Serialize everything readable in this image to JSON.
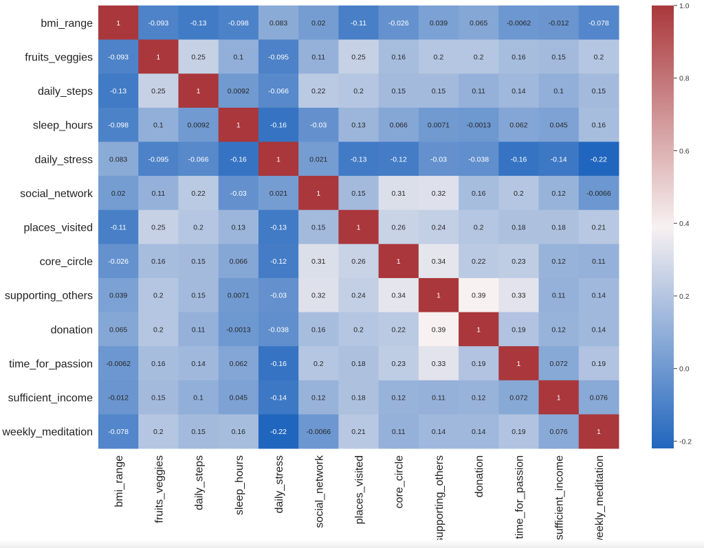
{
  "chart_data": {
    "type": "heatmap",
    "title": "",
    "labels": [
      "bmi_range",
      "fruits_veggies",
      "daily_steps",
      "sleep_hours",
      "daily_stress",
      "social_network",
      "places_visited",
      "core_circle",
      "supporting_others",
      "donation",
      "time_for_passion",
      "sufficient_income",
      "weekly_meditation"
    ],
    "values": [
      [
        1,
        -0.093,
        -0.13,
        -0.098,
        0.083,
        0.02,
        -0.11,
        -0.026,
        0.039,
        0.065,
        -0.0062,
        -0.012,
        -0.078
      ],
      [
        -0.093,
        1,
        0.25,
        0.1,
        -0.095,
        0.11,
        0.25,
        0.16,
        0.2,
        0.2,
        0.16,
        0.15,
        0.2
      ],
      [
        -0.13,
        0.25,
        1,
        0.0092,
        -0.066,
        0.22,
        0.2,
        0.15,
        0.15,
        0.11,
        0.14,
        0.1,
        0.15
      ],
      [
        -0.098,
        0.1,
        0.0092,
        1,
        -0.16,
        -0.03,
        0.13,
        0.066,
        0.0071,
        -0.0013,
        0.062,
        0.045,
        0.16
      ],
      [
        0.083,
        -0.095,
        -0.066,
        -0.16,
        1,
        0.021,
        -0.13,
        -0.12,
        -0.03,
        -0.038,
        -0.16,
        -0.14,
        -0.22
      ],
      [
        0.02,
        0.11,
        0.22,
        -0.03,
        0.021,
        1,
        0.15,
        0.31,
        0.32,
        0.16,
        0.2,
        0.12,
        -0.0066
      ],
      [
        -0.11,
        0.25,
        0.2,
        0.13,
        -0.13,
        0.15,
        1,
        0.26,
        0.24,
        0.2,
        0.18,
        0.18,
        0.21
      ],
      [
        -0.026,
        0.16,
        0.15,
        0.066,
        -0.12,
        0.31,
        0.26,
        1,
        0.34,
        0.22,
        0.23,
        0.12,
        0.11
      ],
      [
        0.039,
        0.2,
        0.15,
        0.0071,
        -0.03,
        0.32,
        0.24,
        0.34,
        1,
        0.39,
        0.33,
        0.11,
        0.14
      ],
      [
        0.065,
        0.2,
        0.11,
        -0.0013,
        -0.038,
        0.16,
        0.2,
        0.22,
        0.39,
        1,
        0.19,
        0.12,
        0.14
      ],
      [
        -0.0062,
        0.16,
        0.14,
        0.062,
        -0.16,
        0.2,
        0.18,
        0.23,
        0.33,
        0.19,
        1,
        0.072,
        0.19
      ],
      [
        -0.012,
        0.15,
        0.1,
        0.045,
        -0.14,
        0.12,
        0.18,
        0.12,
        0.11,
        0.12,
        0.072,
        1,
        0.076
      ],
      [
        -0.078,
        0.2,
        0.15,
        0.16,
        -0.22,
        -0.0066,
        0.21,
        0.11,
        0.14,
        0.14,
        0.19,
        0.076,
        1
      ]
    ],
    "colorbar": {
      "range": [
        -0.22,
        1.0
      ],
      "ticks": [
        -0.2,
        0.0,
        0.2,
        0.4,
        0.6,
        0.8,
        1.0
      ],
      "tick_labels": [
        "-0.2",
        "0.0",
        "0.2",
        "0.4",
        "0.6",
        "0.8",
        "1.0"
      ]
    },
    "colors": {
      "low": "#2166be",
      "mid": "#f7f1f1",
      "high": "#a9373b"
    },
    "annotated": true
  }
}
